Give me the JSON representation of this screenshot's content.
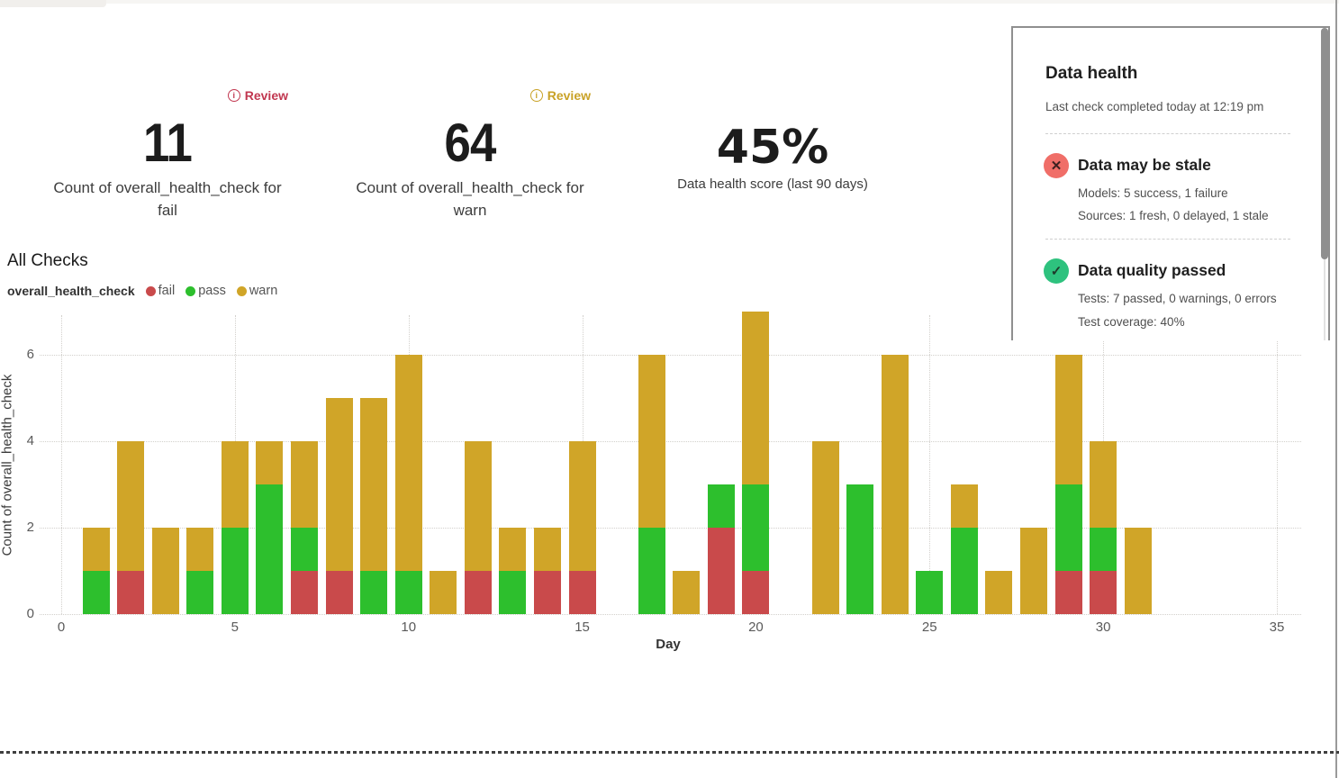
{
  "kpis": [
    {
      "badge": "Review",
      "badge_color": "#c13750",
      "value": "11",
      "label": "Count of overall_health_check for fail"
    },
    {
      "badge": "Review",
      "badge_color": "#c9a227",
      "value": "64",
      "label": "Count of overall_health_check for warn"
    },
    {
      "value": "45%",
      "label": "Data health score (last 90 days)"
    }
  ],
  "chart": {
    "title": "All Checks",
    "legend_title": "overall_health_check",
    "legend": [
      {
        "label": "fail",
        "color": "#c94a4b"
      },
      {
        "label": "pass",
        "color": "#2dbf2d"
      },
      {
        "label": "warn",
        "color": "#d0a528"
      }
    ]
  },
  "chart_data": {
    "type": "bar",
    "stacked": true,
    "title": "All Checks",
    "xlabel": "Day",
    "ylabel": "Count of overall_health_check",
    "x": [
      1,
      2,
      3,
      4,
      5,
      6,
      7,
      8,
      9,
      10,
      11,
      12,
      13,
      14,
      15,
      16,
      17,
      18,
      19,
      20,
      21,
      22,
      23,
      24,
      25,
      26,
      27,
      28,
      29,
      30,
      31
    ],
    "series": [
      {
        "name": "fail",
        "color": "#c94a4b",
        "values": [
          0,
          1,
          0,
          0,
          0,
          0,
          1,
          1,
          0,
          0,
          0,
          1,
          0,
          1,
          1,
          0,
          0,
          0,
          2,
          1,
          0,
          0,
          0,
          0,
          0,
          0,
          0,
          0,
          1,
          1,
          0
        ]
      },
      {
        "name": "pass",
        "color": "#2dbf2d",
        "values": [
          1,
          0,
          0,
          1,
          2,
          3,
          1,
          0,
          1,
          1,
          0,
          0,
          1,
          0,
          0,
          0,
          2,
          0,
          1,
          2,
          0,
          0,
          3,
          0,
          1,
          2,
          0,
          0,
          2,
          1,
          0
        ]
      },
      {
        "name": "warn",
        "color": "#d0a528",
        "values": [
          1,
          3,
          2,
          1,
          2,
          1,
          2,
          4,
          4,
          5,
          1,
          3,
          1,
          1,
          3,
          0,
          4,
          1,
          0,
          4,
          0,
          4,
          0,
          6,
          0,
          1,
          1,
          2,
          3,
          2,
          2
        ]
      }
    ],
    "xticks": [
      0,
      5,
      10,
      15,
      20,
      25,
      30,
      35
    ],
    "yticks": [
      0,
      2,
      4,
      6
    ],
    "xlim": [
      0,
      35.5
    ],
    "ylim": [
      0,
      7.2
    ],
    "grid": "dotted",
    "legend_position": "top-left"
  },
  "health_panel": {
    "title": "Data health",
    "subtitle": "Last check completed today at 12:19 pm",
    "sections": [
      {
        "icon": "x-circle",
        "icon_bg": "#f06e68",
        "icon_fg": "#3d2020",
        "title": "Data may be stale",
        "lines": [
          "Models: 5 success, 1 failure",
          "Sources: 1 fresh, 0 delayed, 1 stale"
        ]
      },
      {
        "icon": "check-circle",
        "icon_bg": "#2ec27e",
        "icon_fg": "#1e3b2b",
        "title": "Data quality passed",
        "lines": [
          "Tests: 7 passed, 0 warnings, 0 errors",
          "Test coverage: 40%"
        ]
      }
    ]
  }
}
